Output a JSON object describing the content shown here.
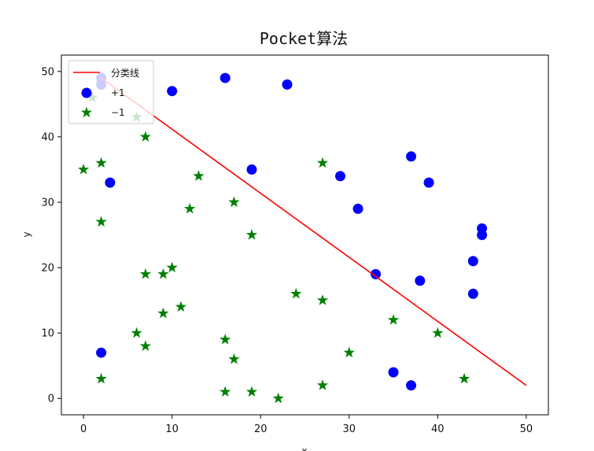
{
  "chart_data": {
    "type": "scatter",
    "title": "Pocket算法",
    "xlabel": "x",
    "ylabel": "y",
    "xlim": [
      -2.5,
      52.5
    ],
    "ylim": [
      -2.5,
      52.5
    ],
    "xticks": [
      0,
      10,
      20,
      30,
      40,
      50
    ],
    "yticks": [
      0,
      10,
      20,
      30,
      40,
      50
    ],
    "grid": false,
    "legend_position": "top-left",
    "line": {
      "name": "分类线",
      "color": "#ff0000",
      "x": [
        2,
        50
      ],
      "y": [
        49,
        2
      ]
    },
    "series": [
      {
        "name": "+1",
        "marker": "circle",
        "color": "#0000ff",
        "points": [
          [
            2,
            48
          ],
          [
            2,
            49
          ],
          [
            3,
            33
          ],
          [
            10,
            47
          ],
          [
            16,
            49
          ],
          [
            19,
            35
          ],
          [
            23,
            48
          ],
          [
            2,
            7
          ],
          [
            29,
            34
          ],
          [
            31,
            29
          ],
          [
            33,
            19
          ],
          [
            37,
            37
          ],
          [
            38,
            18
          ],
          [
            39,
            33
          ],
          [
            44,
            21
          ],
          [
            44,
            16
          ],
          [
            45,
            25
          ],
          [
            45,
            26
          ],
          [
            35,
            4
          ],
          [
            37,
            2
          ]
        ]
      },
      {
        "name": "−1",
        "marker": "star",
        "color": "#008000",
        "points": [
          [
            0,
            35
          ],
          [
            1,
            46
          ],
          [
            2,
            36
          ],
          [
            2,
            27
          ],
          [
            2,
            3
          ],
          [
            6,
            43
          ],
          [
            6,
            10
          ],
          [
            7,
            40
          ],
          [
            7,
            19
          ],
          [
            7,
            8
          ],
          [
            9,
            19
          ],
          [
            9,
            13
          ],
          [
            10,
            20
          ],
          [
            11,
            14
          ],
          [
            12,
            29
          ],
          [
            13,
            34
          ],
          [
            16,
            9
          ],
          [
            16,
            1
          ],
          [
            17,
            30
          ],
          [
            17,
            6
          ],
          [
            19,
            25
          ],
          [
            19,
            1
          ],
          [
            22,
            0
          ],
          [
            24,
            16
          ],
          [
            27,
            36
          ],
          [
            27,
            15
          ],
          [
            27,
            2
          ],
          [
            30,
            7
          ],
          [
            35,
            12
          ],
          [
            40,
            10
          ],
          [
            43,
            3
          ]
        ]
      }
    ]
  }
}
